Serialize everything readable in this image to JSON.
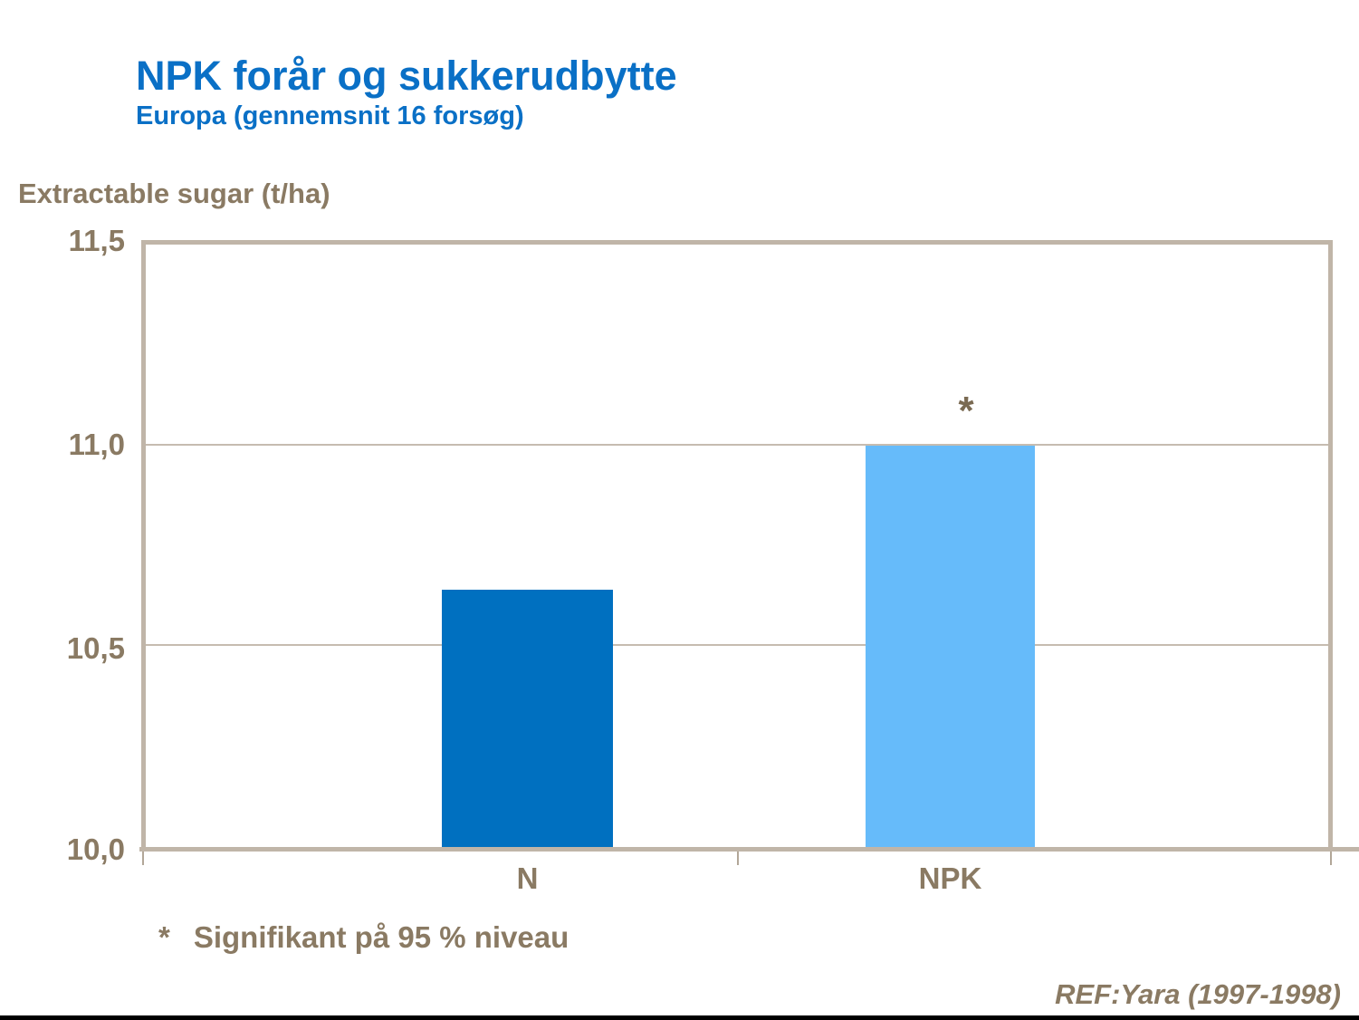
{
  "slide": {
    "title": "NPK forår og sukkerudbytte",
    "subtitle": "Europa (gennemsnit 16 forsøg)",
    "y_axis_title": "Extractable sugar (t/ha)",
    "footnote_marker": "*",
    "footnote_text": "Signifikant på 95 % niveau",
    "reference": "REF:Yara (1997-1998)"
  },
  "colors": {
    "title_blue": "#0a70c6",
    "bar_n_blue": "#0070c0",
    "bar_npk_light_blue": "#66bbfa",
    "frame_tan": "#c0b5a8",
    "gridline_tan": "#c6bcb0",
    "text_brown": "#8a7a63",
    "bottom_border_black": "#000000"
  },
  "chart_data": {
    "type": "bar",
    "title": "NPK forår og sukkerudbytte",
    "subtitle": "Europa (gennemsnit 16 forsøg)",
    "ylabel": "Extractable sugar (t/ha)",
    "xlabel": "",
    "categories": [
      "N",
      "NPK"
    ],
    "values": [
      10.64,
      11.0
    ],
    "bar_colors": [
      "#0070c0",
      "#66bbfa"
    ],
    "ylim": [
      10.0,
      11.5
    ],
    "ytick_values": [
      11.5,
      11.0,
      10.5,
      10.0
    ],
    "ytick_labels": [
      "11,5",
      "11,0",
      "10,5",
      "10,0"
    ],
    "gridline_values": [
      11.0,
      10.5
    ],
    "grid": "horizontal",
    "legend_position": "none",
    "annotations": [
      {
        "category": "NPK",
        "text": "*"
      }
    ]
  }
}
